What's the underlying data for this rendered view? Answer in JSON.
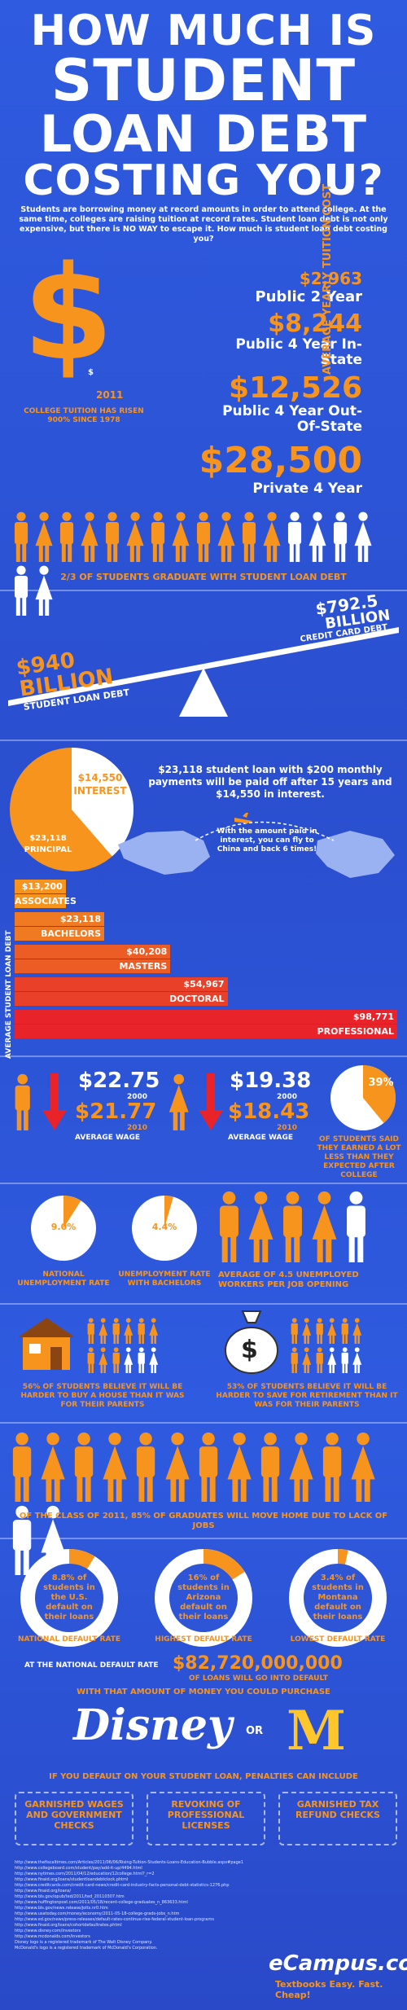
{
  "header": {
    "line1": "HOW MUCH IS",
    "line2": "STUDENT",
    "line3": "LOAN DEBT",
    "line4": "COSTING YOU?",
    "intro": "Students are borrowing money at record amounts in order to attend college. At the same time, colleges are raising tuition at record rates. Student loan debt is not only expensive, but there is NO WAY to escape it. How much is student loan debt costing you?"
  },
  "tuition": {
    "year_label": "2011",
    "small_dollar": "$",
    "caption": "COLLEGE TUITION HAS RISEN 900% SINCE 1978",
    "side_label": "AVERAGE YEARLY TUITION COST",
    "items": [
      {
        "amount": "$2,963",
        "label": "Public 2 Year"
      },
      {
        "amount": "$8,244",
        "label": "Public 4 Year In-State"
      },
      {
        "amount": "$12,526",
        "label": "Public 4 Year Out-Of-State"
      },
      {
        "amount": "$28,500",
        "label": "Private 4 Year"
      }
    ]
  },
  "graduates": {
    "caption": "2/3 OF STUDENTS GRADUATE WITH STUDENT LOAN DEBT",
    "orange": 12,
    "white": 6
  },
  "seesaw": {
    "left_amount": "$940",
    "left_unit": "BILLION",
    "left_label": "STUDENT LOAN DEBT",
    "right_amount": "$792.5",
    "right_unit": "BILLION",
    "right_label": "CREDIT CARD DEBT"
  },
  "interest": {
    "interest_amount": "$14,550",
    "interest_label": "INTEREST",
    "principal_amount": "$23,118",
    "principal_label": "PRINCIPAL",
    "text": "$23,118 student loan with $200 monthly payments will be paid off after 15 years and $14,550 in interest.",
    "china_text": "With the amount paid in interest, you can fly to China and back 6 times!"
  },
  "debt_by_degree": {
    "side_label": "AVERAGE STUDENT LOAN DEBT",
    "bars": [
      {
        "amount": "$13,200",
        "label": "ASSOCIATES",
        "value": 13200
      },
      {
        "amount": "$23,118",
        "label": "BACHELORS",
        "value": 23118
      },
      {
        "amount": "$40,208",
        "label": "MASTERS",
        "value": 40208
      },
      {
        "amount": "$54,967",
        "label": "DOCTORAL",
        "value": 54967
      },
      {
        "amount": "$98,771",
        "label": "PROFESSIONAL",
        "value": 98771
      }
    ]
  },
  "wages": {
    "male_2000": "$22.75",
    "male_2000_year": "2000",
    "male_2010": "$21.77",
    "male_2010_year": "2010",
    "female_2000": "$19.38",
    "female_2000_year": "2000",
    "female_2010": "$18.43",
    "female_2010_year": "2010",
    "avg_label": "AVERAGE WAGE",
    "pct": "39%",
    "pct_value": 39,
    "pct_caption": "OF STUDENTS SAID THEY EARNED A LOT LESS THAN THEY EXPECTED AFTER COLLEGE"
  },
  "unemployment": {
    "national_pct": "9.0%",
    "national_value": 9.0,
    "national_label": "NATIONAL UNEMPLOYMENT RATE",
    "bachelors_pct": "4.4%",
    "bachelors_value": 4.4,
    "bachelors_label": "UNEMPLOYMENT RATE WITH BACHELORS",
    "workers_label": "AVERAGE OF 4.5 UNEMPLOYED WORKERS PER JOB OPENING"
  },
  "house": {
    "text": "56% OF STUDENTS BELIEVE IT WILL BE HARDER TO BUY A HOUSE THAN IT WAS FOR THEIR PARENTS"
  },
  "retire": {
    "text": "53% OF STUDENTS BELIEVE IT WILL BE HARDER TO SAVE FOR RETIREMENT THAN IT WAS FOR THEIR PARENTS",
    "bag_symbol": "$"
  },
  "move_home": {
    "text": "OF THE CLASS OF 2011, 85% OF GRADUATES WILL MOVE HOME DUE TO LACK OF JOBS"
  },
  "default_rates": [
    {
      "text": "8.8% of students in the U.S. default on their loans",
      "label": "NATIONAL DEFAULT RATE",
      "value": 8.8
    },
    {
      "text": "16% of students in Arizona default on their loans",
      "label": "HIGHEST DEFAULT RATE",
      "value": 16
    },
    {
      "text": "3.4% of students in Montana default on their loans",
      "label": "LOWEST DEFAULT RATE",
      "value": 3.4
    }
  ],
  "default_total": {
    "prefix": "AT THE NATIONAL DEFAULT RATE",
    "amount": "$82,720,000,000",
    "suffix": "OF LOANS WILL GO INTO DEFAULT",
    "purchase": "WITH THAT AMOUNT OF MONEY YOU COULD PURCHASE",
    "brand1": "Disney",
    "or": "OR",
    "brand2": "M"
  },
  "penalties": {
    "heading": "IF YOU DEFAULT ON YOUR STUDENT LOAN, PENALTIES CAN INCLUDE",
    "items": [
      "GARNISHED WAGES AND GOVERNMENT CHECKS",
      "REVOKING OF PROFESSIONAL LICENSES",
      "GARNISHED TAX REFUND CHECKS"
    ]
  },
  "footer": {
    "sources": [
      "http://www.thefiscaltimes.com/Articles/2011/06/06/Rising-Tuition-Students-Loans-Education-Bubble.aspx#page1",
      "http://www.collegeboard.com/student/pay/add-it-up/4494.html",
      "http://www.nytimes.com/2011/04/12/education/12college.html?_r=2",
      "http://www.finaid.org/loans/studentloandebtclock.phtml",
      "http://www.creditcards.com/credit-card-news/credit-card-industry-facts-personal-debt-statistics-1276.php",
      "http://www.finaid.org/loans/",
      "http://www.bls.gov/opub/ted/2011/ted_20110307.htm",
      "http://www.huffingtonpost.com/2011/05/18/recent-college-graduates_n_863633.html",
      "http://www.bls.gov/news.release/jolts.nr0.htm",
      "http://www.usatoday.com/money/economy/2011-05-18-college-grads-jobs_n.htm",
      "http://www.ed.gov/news/press-releases/default-rates-continue-rise-federal-student-loan-programs",
      "http://www.finaid.org/loans/cohortdefaultrates.phtml",
      "http://www.disney.com/investors",
      "http://www.mcdonalds.com/investors",
      "Disney logo is a registered trademark of The Walt Disney Company.",
      "McDonald's logo is a registered trademark of McDonald's Corporation."
    ],
    "brand": "eCampus.com",
    "tagline": "Textbooks Easy. Fast. Cheap!"
  },
  "colors": {
    "orange": "#f7941d",
    "blue": "#2e55d6",
    "red": "#e8232a",
    "white": "#ffffff"
  }
}
